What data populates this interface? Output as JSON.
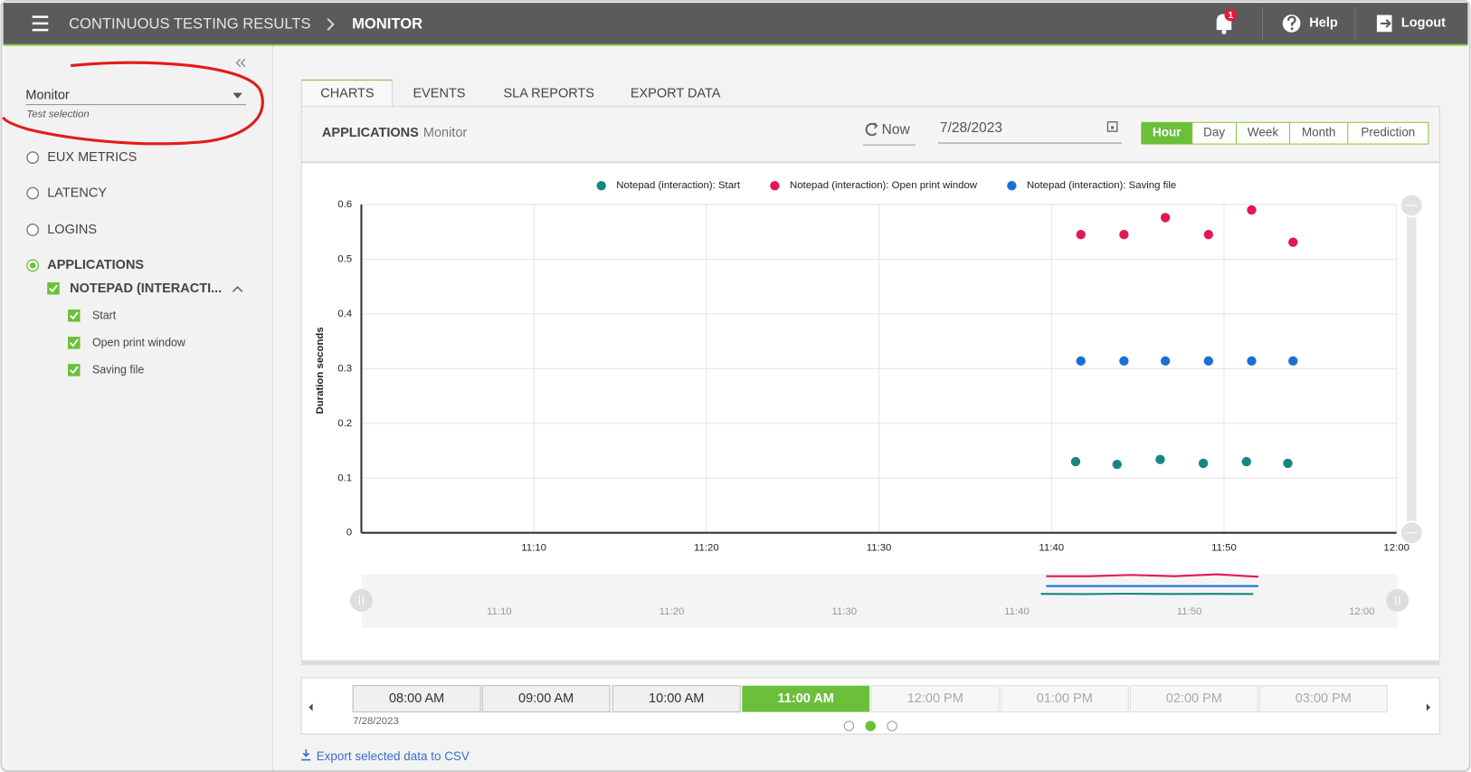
{
  "header": {
    "menu": "CONTINUOUS TESTING RESULTS",
    "page": "MONITOR",
    "notifications": 1,
    "help": "Help",
    "logout": "Logout"
  },
  "sidebar": {
    "test": "Monitor",
    "test_caption": "Test selection",
    "metrics": [
      "EUX METRICS",
      "LATENCY",
      "LOGINS",
      "APPLICATIONS"
    ],
    "application": "NOTEPAD (INTERACTI...",
    "steps": [
      "Start",
      "Open print window",
      "Saving file"
    ]
  },
  "tabs": [
    "CHARTS",
    "EVENTS",
    "SLA REPORTS",
    "EXPORT DATA"
  ],
  "toolbar": {
    "section": "APPLICATIONS",
    "test": "Monitor",
    "now": "Now",
    "date": "7/28/2023",
    "ranges": [
      "Hour",
      "Day",
      "Week",
      "Month",
      "Prediction"
    ]
  },
  "chart_data": {
    "type": "scatter",
    "ylabel": "Duration seconds",
    "legend": "top",
    "grid": true,
    "xlim": [
      0,
      60
    ],
    "xticks": [
      {
        "value": 10,
        "label": "11:10"
      },
      {
        "value": 20,
        "label": "11:20"
      },
      {
        "value": 30,
        "label": "11:30"
      },
      {
        "value": 40,
        "label": "11:40"
      },
      {
        "value": 50,
        "label": "11:50"
      },
      {
        "value": 60,
        "label": "12:00"
      }
    ],
    "ylim": [
      0,
      0.6
    ],
    "yticks": [
      0,
      0.1,
      0.2,
      0.3,
      0.4,
      0.5,
      0.6
    ],
    "series": [
      {
        "name": "Notepad (interaction): Start",
        "color": "#17877f",
        "x": [
          41.4,
          43.8,
          46.3,
          48.8,
          51.3,
          53.7
        ],
        "values": [
          0.13,
          0.125,
          0.134,
          0.127,
          0.13,
          0.127
        ]
      },
      {
        "name": "Notepad (interaction): Open print window",
        "color": "#e5174f",
        "x": [
          41.7,
          44.2,
          46.6,
          49.1,
          51.6,
          54.0
        ],
        "values": [
          0.545,
          0.545,
          0.576,
          0.545,
          0.59,
          0.531
        ]
      },
      {
        "name": "Notepad (interaction): Saving file",
        "color": "#1d6fd8",
        "x": [
          41.7,
          44.2,
          46.6,
          49.1,
          51.6,
          54.0
        ],
        "values": [
          0.314,
          0.314,
          0.314,
          0.314,
          0.314,
          0.314
        ]
      }
    ]
  },
  "timeline": {
    "slots": [
      "08:00 AM",
      "09:00 AM",
      "10:00 AM",
      "11:00 AM",
      "12:00 PM",
      "01:00 PM",
      "02:00 PM",
      "03:00 PM"
    ],
    "date": "7/28/2023"
  },
  "export": "Export selected data to CSV"
}
